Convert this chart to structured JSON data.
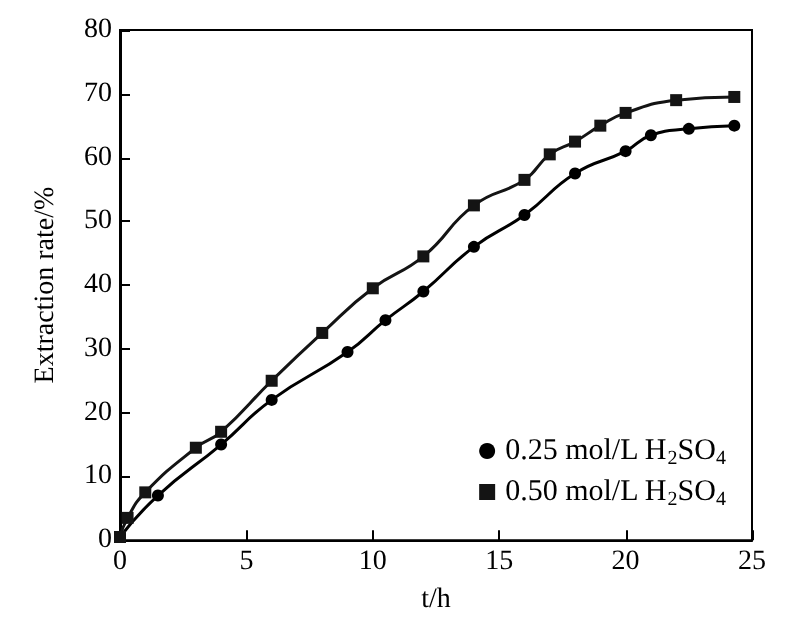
{
  "chart_data": {
    "type": "line",
    "xlabel": "t/h",
    "ylabel": "Extraction rate/%",
    "xlim": [
      0,
      25
    ],
    "xticks": [
      0,
      5,
      10,
      15,
      20,
      25
    ],
    "ylim": [
      0,
      80
    ],
    "yticks": [
      0,
      10,
      20,
      30,
      40,
      50,
      60,
      70,
      80
    ],
    "grid": false,
    "legend": "bottom right",
    "line_style": "solid",
    "series": [
      {
        "name": "0.25 mol/L H$_{2}$SO$_{4}$",
        "color": "#000000",
        "marker": "circle",
        "x": [
          0,
          1.5,
          4,
          6,
          9,
          10.5,
          12,
          14,
          16,
          18,
          20,
          21,
          22.5,
          24.3
        ],
        "values": [
          0.5,
          7,
          15,
          22,
          29.5,
          34.5,
          39,
          46,
          51,
          57.5,
          61,
          63.5,
          64.5,
          65
        ]
      },
      {
        "name": "0.50 mol/L H$_{2}$SO$_{4}$",
        "color": "#141414",
        "marker": "square",
        "x": [
          0,
          0.3,
          1,
          3,
          4,
          6,
          8,
          10,
          12,
          14,
          16,
          17,
          18,
          19,
          20,
          22,
          24.3
        ],
        "values": [
          0.5,
          3.5,
          7.5,
          14.5,
          17,
          25,
          32.5,
          39.5,
          44.5,
          52.5,
          56.5,
          60.5,
          62.5,
          65,
          67,
          69,
          69.5
        ]
      }
    ]
  }
}
